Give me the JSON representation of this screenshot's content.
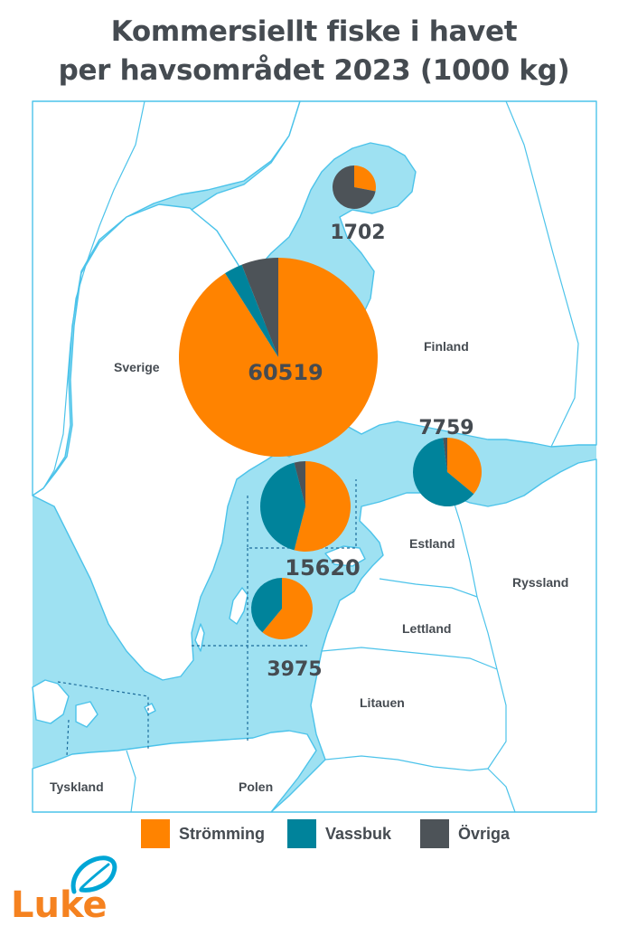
{
  "title": {
    "line1": "Kommersiellt fiske i havet",
    "line2": "per havsområdet 2023 (1000 kg)"
  },
  "colors": {
    "sea": "#9ee1f2",
    "land": "#ffffff",
    "border": "#4cc3ea",
    "subdivision": "#1c6b9a",
    "text": "#454b51",
    "logo_orange": "#f58220",
    "logo_blue": "#00a6d6"
  },
  "countries": {
    "sverige": "Sverige",
    "finland": "Finland",
    "estland": "Estland",
    "ryssland": "Ryssland",
    "lettland": "Lettland",
    "litauen": "Litauen",
    "tyskland": "Tyskland",
    "polen": "Polen"
  },
  "chart_data": {
    "type": "pie",
    "title": "Kommersiellt fiske i havet per havsområdet 2023 (1000 kg)",
    "categories": [
      "Strömming",
      "Vassbuk",
      "Övriga"
    ],
    "colors": [
      "#ff8300",
      "#00839b",
      "#4d5358"
    ],
    "series": [
      {
        "total": 1702,
        "shares": [
          0.28,
          0.0,
          0.72
        ]
      },
      {
        "total": 60519,
        "shares": [
          0.91,
          0.03,
          0.06
        ]
      },
      {
        "total": 15620,
        "shares": [
          0.54,
          0.42,
          0.04
        ]
      },
      {
        "total": 7759,
        "shares": [
          0.36,
          0.62,
          0.02
        ]
      },
      {
        "total": 3975,
        "shares": [
          0.61,
          0.39,
          0.0
        ]
      }
    ],
    "legend": "bottom"
  },
  "logo": {
    "text": "Luke"
  }
}
